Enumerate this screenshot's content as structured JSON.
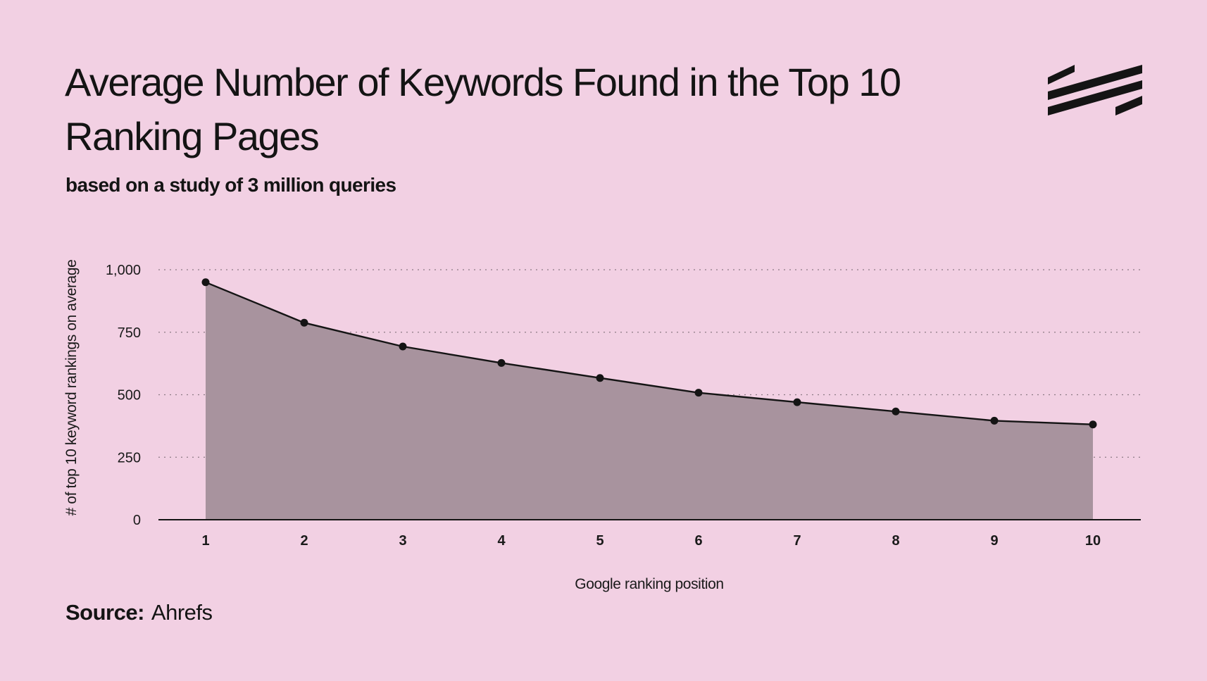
{
  "header": {
    "title": "Average Number of Keywords Found in the Top 10 Ranking Pages",
    "subtitle": "based on a study of 3 million queries"
  },
  "footer": {
    "source_label": "Source:",
    "source_value": "Ahrefs"
  },
  "colors": {
    "background": "#f2d0e3",
    "area_fill": "#a8939e",
    "line": "#141414",
    "grid": "#8c7a84"
  },
  "icons": {
    "logo": "stripes-logo-icon"
  },
  "chart_data": {
    "type": "area",
    "title": "Average Number of Keywords Found in the Top 10 Ranking Pages",
    "subtitle": "based on a study of 3 million queries",
    "xlabel": "Google ranking position",
    "ylabel": "# of top 10 keyword rankings on average",
    "x": [
      1,
      2,
      3,
      4,
      5,
      6,
      7,
      8,
      9,
      10
    ],
    "values": [
      950,
      788,
      693,
      627,
      567,
      508,
      470,
      433,
      396,
      381
    ],
    "ylim": [
      0,
      1000
    ],
    "yticks": [
      0,
      250,
      500,
      750,
      1000
    ],
    "ytick_labels": [
      "0",
      "250",
      "500",
      "750",
      "1,000"
    ],
    "xtick_labels": [
      "1",
      "2",
      "3",
      "4",
      "5",
      "6",
      "7",
      "8",
      "9",
      "10"
    ],
    "grid": true,
    "markers": true
  }
}
